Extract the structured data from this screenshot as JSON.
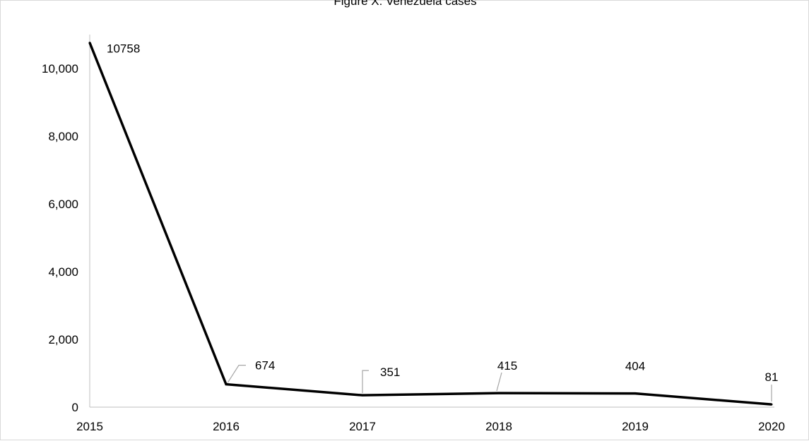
{
  "chart_data": {
    "type": "line",
    "title": "Figure X: Venezuela cases",
    "xlabel": "",
    "ylabel": "",
    "x": [
      "2015",
      "2016",
      "2017",
      "2018",
      "2019",
      "2020"
    ],
    "series": [
      {
        "values": [
          10758,
          674,
          351,
          415,
          404,
          81
        ],
        "labels": [
          "10758",
          "674",
          "351",
          "415",
          "404",
          "81"
        ]
      }
    ],
    "ylim": [
      0,
      11000
    ],
    "yticks": [
      0,
      2000,
      4000,
      6000,
      8000,
      10000
    ],
    "ytick_labels": [
      "0",
      "2,000",
      "4,000",
      "6,000",
      "8,000",
      "10,000"
    ],
    "grid": false,
    "legend": "none",
    "colors": {
      "line": "#000000",
      "leader": "#a6a6a6",
      "axis": "#bfbfbf",
      "border": "#d9d9d9"
    }
  }
}
